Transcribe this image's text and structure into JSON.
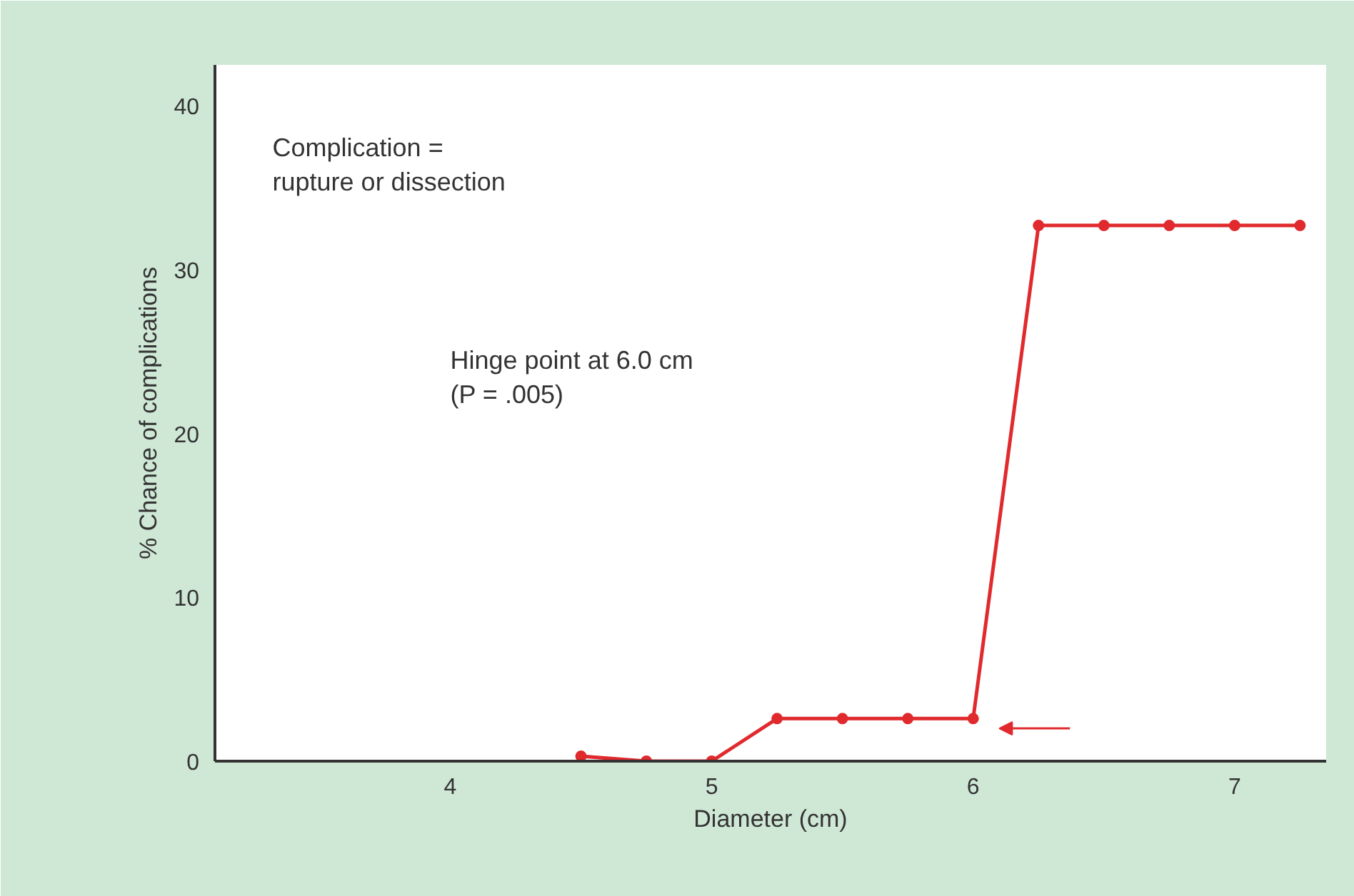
{
  "chart_data": {
    "type": "line",
    "xlabel": "Diameter (cm)",
    "ylabel": "% Chance of complications",
    "x": [
      4.5,
      4.75,
      5.0,
      5.25,
      5.5,
      5.75,
      6.0,
      6.25,
      6.5,
      6.75,
      7.0,
      7.25
    ],
    "series": [
      {
        "color": "#e02a2e",
        "values": [
          0.3,
          0,
          0,
          2.6,
          2.6,
          2.6,
          2.6,
          32.7,
          32.7,
          32.7,
          32.7,
          32.7
        ]
      }
    ],
    "xlim": [
      3.1,
      7.35
    ],
    "ylim": [
      0,
      42.5
    ],
    "xticks": [
      4,
      5,
      6,
      7
    ],
    "yticks": [
      0,
      10,
      20,
      30,
      40
    ],
    "grid": false,
    "marker": "circle",
    "line_style": "solid",
    "annotations": [
      "Complication =\nrupture or dissection",
      "Hinge point at 6.0 cm\n(P = .005)"
    ]
  }
}
